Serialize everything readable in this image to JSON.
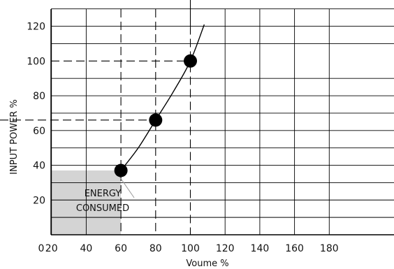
{
  "chart_data": {
    "type": "line",
    "xlabel": "Voume %",
    "ylabel": "INPUT POWER %",
    "xlim": [
      0,
      195
    ],
    "ylim": [
      0,
      130
    ],
    "x_ticks": [
      0,
      20,
      40,
      60,
      80,
      100,
      120,
      140,
      160,
      180
    ],
    "y_ticks": [
      20,
      40,
      60,
      80,
      100,
      120
    ],
    "grid": true,
    "series": [
      {
        "x": [
          60,
          70,
          80,
          90,
          100,
          108
        ],
        "y": [
          37,
          50,
          66,
          82,
          100,
          121
        ]
      }
    ],
    "highlighted_points": [
      {
        "x": 60,
        "y": 37
      },
      {
        "x": 80,
        "y": 66
      },
      {
        "x": 100,
        "y": 100
      }
    ],
    "shaded_region": {
      "x": [
        0,
        60
      ],
      "y": [
        0,
        37
      ]
    },
    "annotation": {
      "line1": "ENERGY",
      "line2": "CONSUMED"
    },
    "colors": {
      "fill": "#d4d4d4",
      "line": "#000000",
      "grid": "#000000"
    }
  }
}
